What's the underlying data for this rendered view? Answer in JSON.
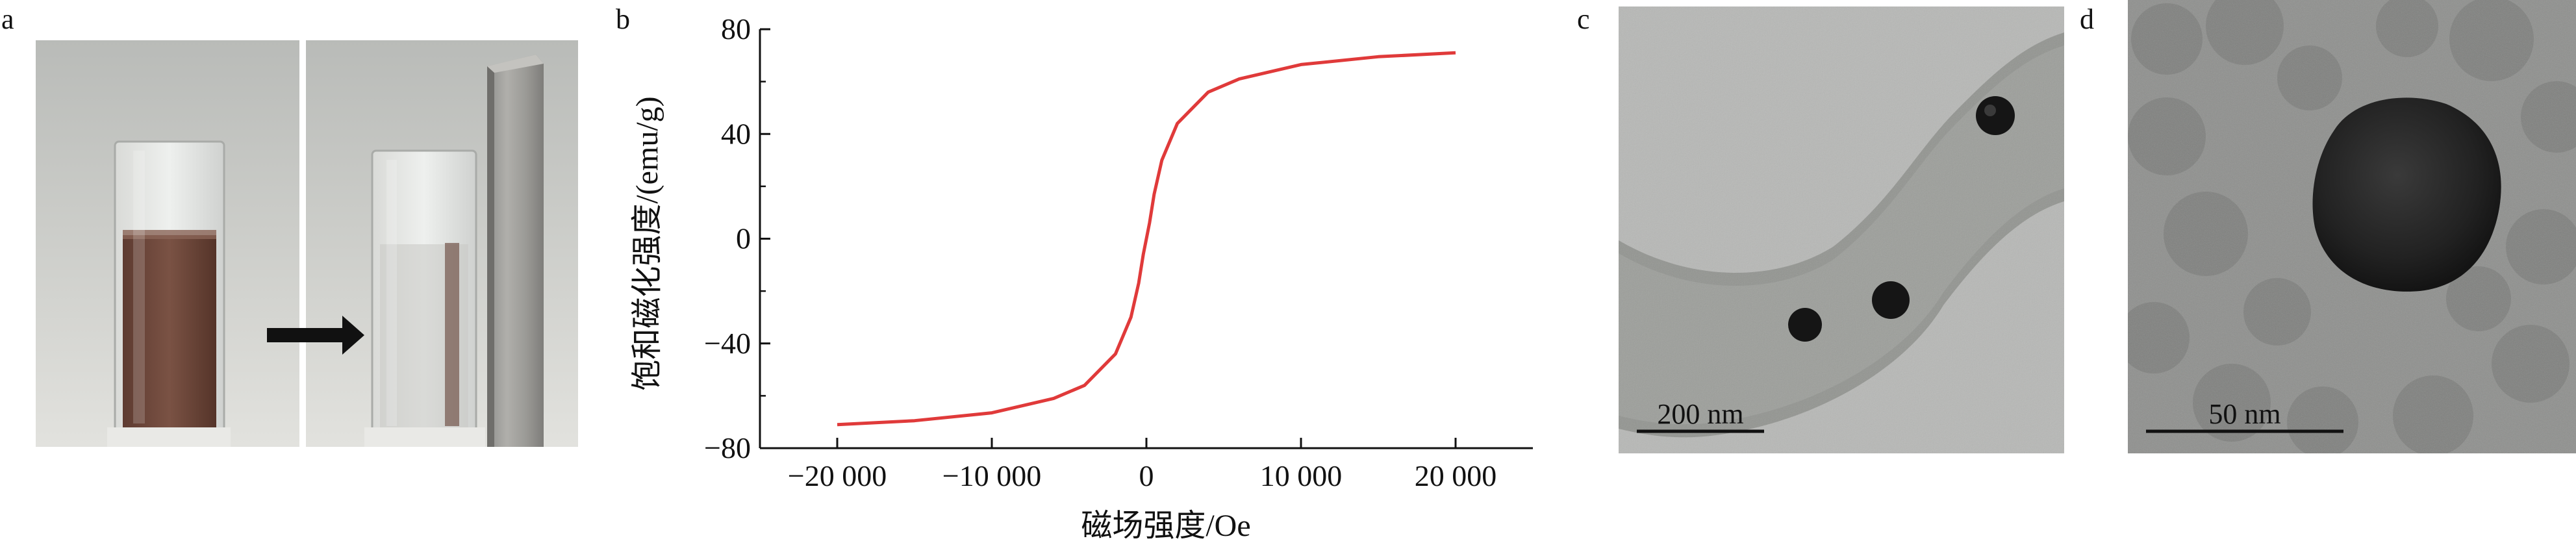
{
  "panels": {
    "a": {
      "label": "a"
    },
    "b": {
      "label": "b"
    },
    "c": {
      "label": "c",
      "scale_bar": "200 nm"
    },
    "d": {
      "label": "d",
      "scale_bar": "50 nm"
    }
  },
  "chart_data": {
    "type": "line",
    "title": "",
    "xlabel": "磁场强度/Oe",
    "ylabel": "饱和磁化强度/(emu/g)",
    "xlim": [
      -25000,
      25000
    ],
    "ylim": [
      -80,
      80
    ],
    "x_ticks": [
      -20000,
      -10000,
      0,
      10000,
      20000
    ],
    "x_tick_labels": [
      "−20 000",
      "−10 000",
      "0",
      "10 000",
      "20 000"
    ],
    "y_ticks": [
      -80,
      -40,
      0,
      40,
      80
    ],
    "y_tick_labels": [
      "−80",
      "−40",
      "0",
      "40",
      "80"
    ],
    "grid": false,
    "series": [
      {
        "color": "#e03a3a",
        "x": [
          -20000,
          -15000,
          -10000,
          -6000,
          -4000,
          -2000,
          -1000,
          -500,
          -200,
          0,
          200,
          500,
          1000,
          2000,
          4000,
          6000,
          10000,
          15000,
          20000
        ],
        "y": [
          -71,
          -69.5,
          -66.5,
          -61,
          -56,
          -44,
          -30,
          -17,
          -6,
          0,
          6,
          17,
          30,
          44,
          56,
          61,
          66.5,
          69.5,
          71
        ]
      }
    ]
  }
}
